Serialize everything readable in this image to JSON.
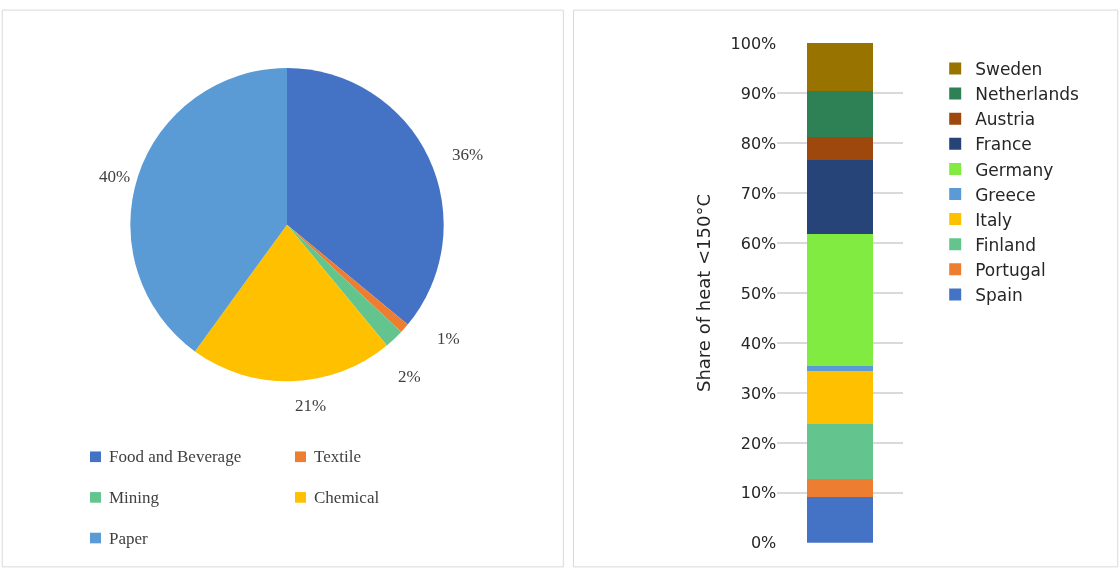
{
  "chart_data": [
    {
      "type": "pie",
      "categories": [
        "Food and Beverage",
        "Textile",
        "Mining",
        "Chemical",
        "Paper"
      ],
      "values": [
        36,
        1,
        2,
        21,
        40
      ],
      "value_labels": [
        "36%",
        "1%",
        "2%",
        "21%",
        "40%"
      ],
      "colors": [
        "#4472c4",
        "#ed7d31",
        "#63c58d",
        "#ffc000",
        "#5b9bd5"
      ],
      "legend": "bottom"
    },
    {
      "type": "bar",
      "stacked": true,
      "categories": [
        null
      ],
      "ylabel": "Share of heat <150°C",
      "ylim": [
        0,
        100
      ],
      "yticks": [
        {
          "value": 0,
          "label": "0%"
        },
        {
          "value": 10,
          "label": "10%"
        },
        {
          "value": 20,
          "label": "20%"
        },
        {
          "value": 30,
          "label": "30%"
        },
        {
          "value": 40,
          "label": "40%"
        },
        {
          "value": 50,
          "label": "50%"
        },
        {
          "value": 60,
          "label": "60%"
        },
        {
          "value": 70,
          "label": "70%"
        },
        {
          "value": 80,
          "label": "80%"
        },
        {
          "value": 90,
          "label": "90%"
        },
        {
          "value": 100,
          "label": "100%"
        }
      ],
      "grid": "y",
      "legend": "right",
      "series": [
        {
          "name": "Spain",
          "color": "#4472c4",
          "values": [
            9.2
          ]
        },
        {
          "name": "Portugal",
          "color": "#ed7d31",
          "values": [
            3.5
          ]
        },
        {
          "name": "Finland",
          "color": "#63c58d",
          "values": [
            11.0
          ]
        },
        {
          "name": "Italy",
          "color": "#ffc000",
          "values": [
            10.6
          ]
        },
        {
          "name": "Greece",
          "color": "#5b9bd5",
          "values": [
            1.0
          ]
        },
        {
          "name": "Germany",
          "color": "#82eb41",
          "values": [
            26.5
          ]
        },
        {
          "name": "France",
          "color": "#264478",
          "values": [
            14.9
          ]
        },
        {
          "name": "Austria",
          "color": "#9e480e",
          "values": [
            4.6
          ]
        },
        {
          "name": "Netherlands",
          "color": "#2e8155",
          "values": [
            9.1
          ]
        },
        {
          "name": "Sweden",
          "color": "#997300",
          "values": [
            9.6
          ]
        }
      ]
    }
  ]
}
